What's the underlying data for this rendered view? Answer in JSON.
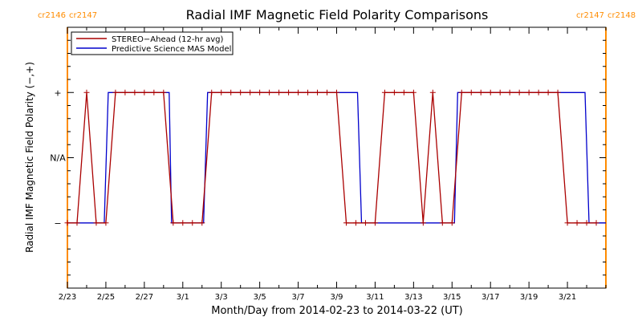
{
  "chart_data": {
    "type": "line",
    "title": "Radial IMF Magnetic Field Polarity Comparisons",
    "xlabel": "Month/Day from 2014-02-23 to 2014-03-22 (UT)",
    "ylabel": "Radial IMF Magnetic Field Polarity (−,+)",
    "xlim": [
      "2014-02-23",
      "2014-03-23"
    ],
    "x_tick_labels": [
      "2/23",
      "2/25",
      "2/27",
      "3/1",
      "3/3",
      "3/5",
      "3/7",
      "3/9",
      "3/11",
      "3/13",
      "3/15",
      "3/17",
      "3/19",
      "3/21"
    ],
    "y_tick_labels": [
      "−",
      "N/A",
      "+"
    ],
    "ylim": [
      -2,
      2
    ],
    "grid": false,
    "legend_position": "top-left",
    "carrington_markers": [
      {
        "date": "2014-02-23",
        "left_label": "cr2146",
        "right_label": "cr2147"
      },
      {
        "date": "2014-03-23",
        "left_label": "cr2147",
        "right_label": "cr2148"
      }
    ],
    "series": [
      {
        "name": "STEREO−Ahead (12-hr avg)",
        "color": "#aa0000",
        "x": [
          "2014-02-23 00:00",
          "2014-02-23 12:00",
          "2014-02-24 00:00",
          "2014-02-24 12:00",
          "2014-02-25 00:00",
          "2014-02-25 12:00",
          "2014-02-26 00:00",
          "2014-02-26 12:00",
          "2014-02-27 00:00",
          "2014-02-27 12:00",
          "2014-02-28 00:00",
          "2014-02-28 12:00",
          "2014-03-01 00:00",
          "2014-03-01 12:00",
          "2014-03-02 00:00",
          "2014-03-02 12:00",
          "2014-03-03 00:00",
          "2014-03-03 12:00",
          "2014-03-04 00:00",
          "2014-03-04 12:00",
          "2014-03-05 00:00",
          "2014-03-05 12:00",
          "2014-03-06 00:00",
          "2014-03-06 12:00",
          "2014-03-07 00:00",
          "2014-03-07 12:00",
          "2014-03-08 00:00",
          "2014-03-08 12:00",
          "2014-03-09 00:00",
          "2014-03-09 12:00",
          "2014-03-10 00:00",
          "2014-03-10 12:00",
          "2014-03-11 00:00",
          "2014-03-11 12:00",
          "2014-03-12 00:00",
          "2014-03-12 12:00",
          "2014-03-13 00:00",
          "2014-03-13 12:00",
          "2014-03-14 00:00",
          "2014-03-14 12:00",
          "2014-03-15 00:00",
          "2014-03-15 12:00",
          "2014-03-16 00:00",
          "2014-03-16 12:00",
          "2014-03-17 00:00",
          "2014-03-17 12:00",
          "2014-03-18 00:00",
          "2014-03-18 12:00",
          "2014-03-19 00:00",
          "2014-03-19 12:00",
          "2014-03-20 00:00",
          "2014-03-20 12:00",
          "2014-03-21 00:00",
          "2014-03-21 12:00",
          "2014-03-22 00:00",
          "2014-03-22 12:00"
        ],
        "values": [
          -1,
          -1,
          1,
          -1,
          -1,
          1,
          1,
          1,
          1,
          1,
          1,
          -1,
          -1,
          -1,
          -1,
          1,
          1,
          1,
          1,
          1,
          1,
          1,
          1,
          1,
          1,
          1,
          1,
          1,
          1,
          -1,
          -1,
          -1,
          -1,
          1,
          1,
          1,
          1,
          -1,
          1,
          -1,
          -1,
          1,
          1,
          1,
          1,
          1,
          1,
          1,
          1,
          1,
          1,
          1,
          -1,
          -1,
          -1,
          -1
        ]
      },
      {
        "name": "Predictive Science MAS Model",
        "color": "#0000cc",
        "x": [
          "2014-02-23 00:00",
          "2014-02-24 22:00",
          "2014-02-25 03:00",
          "2014-02-28 07:00",
          "2014-02-28 10:00",
          "2014-03-02 02:00",
          "2014-03-02 07:00",
          "2014-03-10 02:00",
          "2014-03-10 07:00",
          "2014-03-15 03:00",
          "2014-03-15 07:00",
          "2014-03-21 22:00",
          "2014-03-22 03:00",
          "2014-03-23 00:00"
        ],
        "values": [
          -1,
          -1,
          1,
          1,
          -1,
          -1,
          1,
          1,
          -1,
          -1,
          1,
          1,
          -1,
          -1
        ]
      }
    ]
  }
}
